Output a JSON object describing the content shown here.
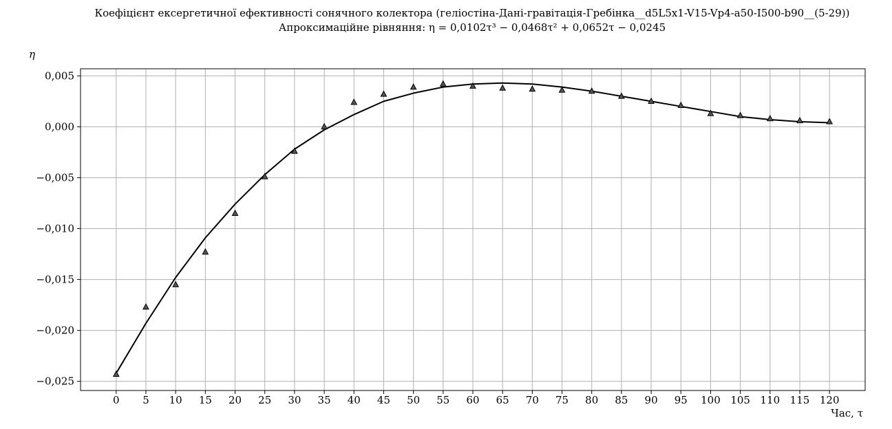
{
  "chart_data": {
    "type": "scatter",
    "title": "Коефіцієнт ексергетичної ефективності сонячного колектора (геліостіна-Дані-гравітація-Гребінка__d5L5x1-V15-Vp4-a50-I500-b90__(5-29))",
    "subtitle": "Апроксимаційне рівняння: η = 0,0102τ³ − 0,0468τ² + 0,0652τ − 0,0245",
    "xlabel": "Час, τ",
    "ylabel": "η",
    "xlim": [
      -6,
      126
    ],
    "ylim": [
      -0.0259,
      0.0057
    ],
    "grid": true,
    "x_ticks": [
      0,
      5,
      10,
      15,
      20,
      25,
      30,
      35,
      40,
      45,
      50,
      55,
      60,
      65,
      70,
      75,
      80,
      85,
      90,
      95,
      100,
      105,
      110,
      115,
      120
    ],
    "x_tick_labels": [
      "0",
      "5",
      "10",
      "15",
      "20",
      "25",
      "30",
      "35",
      "40",
      "45",
      "50",
      "55",
      "60",
      "65",
      "70",
      "75",
      "80",
      "85",
      "90",
      "95",
      "100",
      "105",
      "110",
      "115",
      "120"
    ],
    "y_ticks": [
      0.005,
      0.0,
      -0.005,
      -0.01,
      -0.015,
      -0.02,
      -0.025
    ],
    "y_tick_labels": [
      "0,005",
      "0,000",
      "−0,005",
      "−0,010",
      "−0,015",
      "−0,020",
      "−0,025"
    ],
    "series": [
      {
        "kind": "scatter",
        "marker": "triangle",
        "color": "#555555",
        "edge_color": "#000000",
        "x": [
          0,
          5,
          10,
          15,
          20,
          25,
          30,
          35,
          40,
          45,
          50,
          55,
          60,
          65,
          70,
          75,
          80,
          85,
          90,
          95,
          100,
          105,
          110,
          115,
          120
        ],
        "y": [
          -0.0243,
          -0.0177,
          -0.0155,
          -0.0123,
          -0.0085,
          -0.0049,
          -0.0024,
          0.0,
          0.0024,
          0.0032,
          0.0039,
          0.0042,
          0.004,
          0.0038,
          0.0037,
          0.0036,
          0.0035,
          0.003,
          0.0025,
          0.0021,
          0.0013,
          0.0011,
          0.0008,
          0.0006,
          0.0005
        ]
      },
      {
        "kind": "line",
        "color": "#000000",
        "x": [
          0,
          5,
          10,
          15,
          20,
          25,
          30,
          35,
          40,
          45,
          50,
          55,
          60,
          65,
          70,
          75,
          80,
          85,
          90,
          95,
          100,
          105,
          110,
          115,
          120
        ],
        "y": [
          -0.0242,
          -0.0193,
          -0.0148,
          -0.0109,
          -0.0076,
          -0.0047,
          -0.0022,
          -0.0003,
          0.0012,
          0.0025,
          0.0033,
          0.0039,
          0.0042,
          0.0043,
          0.0042,
          0.0039,
          0.0035,
          0.003,
          0.0025,
          0.002,
          0.0015,
          0.001,
          0.0007,
          0.0005,
          0.0004
        ]
      }
    ]
  }
}
